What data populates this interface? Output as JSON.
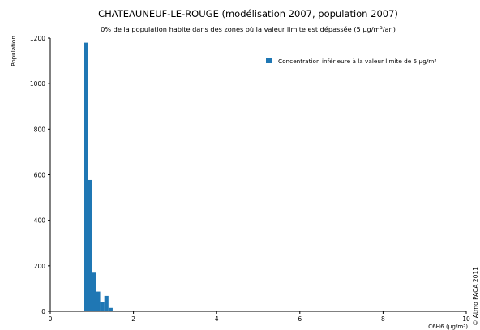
{
  "chart_data": {
    "type": "bar",
    "title": "CHATEAUNEUF-LE-ROUGE (modélisation 2007, population 2007)",
    "subtitle": "0% de la population habite dans des zones où la valeur limite est dépassée (5 µg/m³/an)",
    "xlabel": "C6H6 (µg/m³)",
    "ylabel": "Population",
    "xlim": [
      0,
      10
    ],
    "ylim": [
      0,
      1200
    ],
    "xticks": [
      0,
      2,
      4,
      6,
      8,
      10
    ],
    "yticks": [
      0,
      200,
      400,
      600,
      800,
      1000,
      1200
    ],
    "bin_width": 0.1,
    "series": [
      {
        "name": "Concentration inférieure à la valeur limite de 5 µg/m³",
        "color": "#1f77b4",
        "bins": [
          {
            "x": 0.8,
            "value": 1180
          },
          {
            "x": 0.9,
            "value": 577
          },
          {
            "x": 1.0,
            "value": 170
          },
          {
            "x": 1.1,
            "value": 87
          },
          {
            "x": 1.2,
            "value": 40
          },
          {
            "x": 1.3,
            "value": 68
          },
          {
            "x": 1.4,
            "value": 15
          }
        ]
      }
    ],
    "legend_position": "top-right",
    "grid": false
  },
  "credit": "© Atmo PACA 2011"
}
